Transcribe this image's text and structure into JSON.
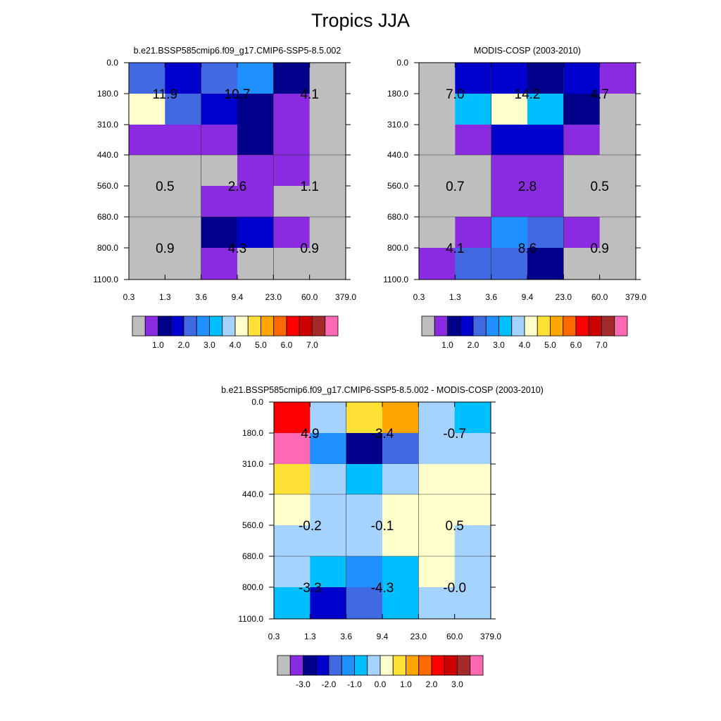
{
  "figure_title": "Tropics JJA",
  "palettes": {
    "absolute": [
      "#bebebe",
      "#8a2be2",
      "#00008b",
      "#0000cd",
      "#4169e1",
      "#1e90ff",
      "#00bfff",
      "#a4d3ff",
      "#ffffcc",
      "#ffe135",
      "#ffa500",
      "#ff6a00",
      "#ff0000",
      "#cd0000",
      "#a52a2a",
      "#ff69b4"
    ],
    "difference": [
      "#bebebe",
      "#8a2be2",
      "#00008b",
      "#0000cd",
      "#4169e1",
      "#1e90ff",
      "#00bfff",
      "#a4d3ff",
      "#ffffcc",
      "#ffe135",
      "#ffa500",
      "#ff6a00",
      "#ff0000",
      "#cd0000",
      "#a52a2a",
      "#ff69b4"
    ]
  },
  "chart_data": [
    {
      "type": "heatmap",
      "title": "b.e21.BSSP585cmip6.f09_g17.CMIP6-SSP5-8.5.002",
      "x_ticks": [
        "0.3",
        "1.3",
        "3.6",
        "9.4",
        "23.0",
        "60.0",
        "379.0"
      ],
      "y_ticks": [
        "0.0",
        "180.0",
        "310.0",
        "440.0",
        "560.0",
        "680.0",
        "800.0",
        "1100.0"
      ],
      "palette": "absolute",
      "cells": [
        [
          4,
          3,
          4,
          5,
          2,
          0
        ],
        [
          8,
          4,
          3,
          2,
          1,
          0
        ],
        [
          1,
          1,
          1,
          2,
          1,
          0
        ],
        [
          0,
          0,
          0,
          1,
          1,
          0
        ],
        [
          0,
          0,
          1,
          1,
          0,
          0
        ],
        [
          0,
          0,
          2,
          3,
          1,
          0
        ],
        [
          0,
          0,
          1,
          0,
          0,
          0
        ]
      ],
      "block_labels": [
        {
          "row": 1,
          "col": 0,
          "text": "11.9"
        },
        {
          "row": 1,
          "col": 1,
          "text": "10.7"
        },
        {
          "row": 1,
          "col": 2,
          "text": "4.1"
        },
        {
          "row": 4,
          "col": 0,
          "text": "0.5"
        },
        {
          "row": 4,
          "col": 1,
          "text": "2.6"
        },
        {
          "row": 4,
          "col": 2,
          "text": "1.1"
        },
        {
          "row": 6,
          "col": 0,
          "text": "0.9"
        },
        {
          "row": 6,
          "col": 1,
          "text": "4.3"
        },
        {
          "row": 6,
          "col": 2,
          "text": "0.9"
        }
      ],
      "colorbar_labels": [
        "1.0",
        "2.0",
        "3.0",
        "4.0",
        "5.0",
        "6.0",
        "7.0"
      ]
    },
    {
      "type": "heatmap",
      "title": "MODIS-COSP (2003-2010)",
      "x_ticks": [
        "0.3",
        "1.3",
        "3.6",
        "9.4",
        "23.0",
        "60.0",
        "379.0"
      ],
      "y_ticks": [
        "0.0",
        "180.0",
        "310.0",
        "440.0",
        "560.0",
        "680.0",
        "800.0",
        "1100.0"
      ],
      "palette": "absolute",
      "cells": [
        [
          0,
          3,
          3,
          2,
          3,
          1
        ],
        [
          0,
          6,
          8,
          6,
          2,
          0
        ],
        [
          0,
          1,
          3,
          3,
          1,
          0
        ],
        [
          0,
          0,
          1,
          1,
          0,
          0
        ],
        [
          0,
          0,
          1,
          1,
          0,
          0
        ],
        [
          0,
          1,
          5,
          4,
          1,
          0
        ],
        [
          1,
          4,
          4,
          2,
          0,
          0
        ]
      ],
      "block_labels": [
        {
          "row": 1,
          "col": 0,
          "text": "7.0"
        },
        {
          "row": 1,
          "col": 1,
          "text": "14.2"
        },
        {
          "row": 1,
          "col": 2,
          "text": "4.7"
        },
        {
          "row": 4,
          "col": 0,
          "text": "0.7"
        },
        {
          "row": 4,
          "col": 1,
          "text": "2.8"
        },
        {
          "row": 4,
          "col": 2,
          "text": "0.5"
        },
        {
          "row": 6,
          "col": 0,
          "text": "4.1"
        },
        {
          "row": 6,
          "col": 1,
          "text": "8.6"
        },
        {
          "row": 6,
          "col": 2,
          "text": "0.9"
        }
      ],
      "colorbar_labels": [
        "1.0",
        "2.0",
        "3.0",
        "4.0",
        "5.0",
        "6.0",
        "7.0"
      ]
    },
    {
      "type": "heatmap",
      "title": "b.e21.BSSP585cmip6.f09_g17.CMIP6-SSP5-8.5.002 - MODIS-COSP (2003-2010)",
      "x_ticks": [
        "0.3",
        "1.3",
        "3.6",
        "9.4",
        "23.0",
        "60.0",
        "379.0"
      ],
      "y_ticks": [
        "0.0",
        "180.0",
        "310.0",
        "440.0",
        "560.0",
        "680.0",
        "800.0",
        "1100.0"
      ],
      "palette": "difference",
      "cells": [
        [
          12,
          7,
          9,
          10,
          7,
          6
        ],
        [
          15,
          5,
          2,
          4,
          7,
          7
        ],
        [
          9,
          7,
          6,
          7,
          8,
          8
        ],
        [
          8,
          7,
          7,
          8,
          8,
          8
        ],
        [
          7,
          7,
          7,
          8,
          8,
          7
        ],
        [
          7,
          6,
          5,
          6,
          8,
          7
        ],
        [
          6,
          3,
          4,
          6,
          7,
          7
        ]
      ],
      "block_labels": [
        {
          "row": 1,
          "col": 0,
          "text": "4.9"
        },
        {
          "row": 1,
          "col": 1,
          "text": "-3.4"
        },
        {
          "row": 1,
          "col": 2,
          "text": "-0.7"
        },
        {
          "row": 4,
          "col": 0,
          "text": "-0.2"
        },
        {
          "row": 4,
          "col": 1,
          "text": "-0.1"
        },
        {
          "row": 4,
          "col": 2,
          "text": "0.5"
        },
        {
          "row": 6,
          "col": 0,
          "text": "-3.3"
        },
        {
          "row": 6,
          "col": 1,
          "text": "-4.3"
        },
        {
          "row": 6,
          "col": 2,
          "text": "-0.0"
        }
      ],
      "colorbar_labels": [
        "-3.0",
        "-2.0",
        "-1.0",
        "0.0",
        "1.0",
        "2.0",
        "3.0"
      ]
    }
  ]
}
